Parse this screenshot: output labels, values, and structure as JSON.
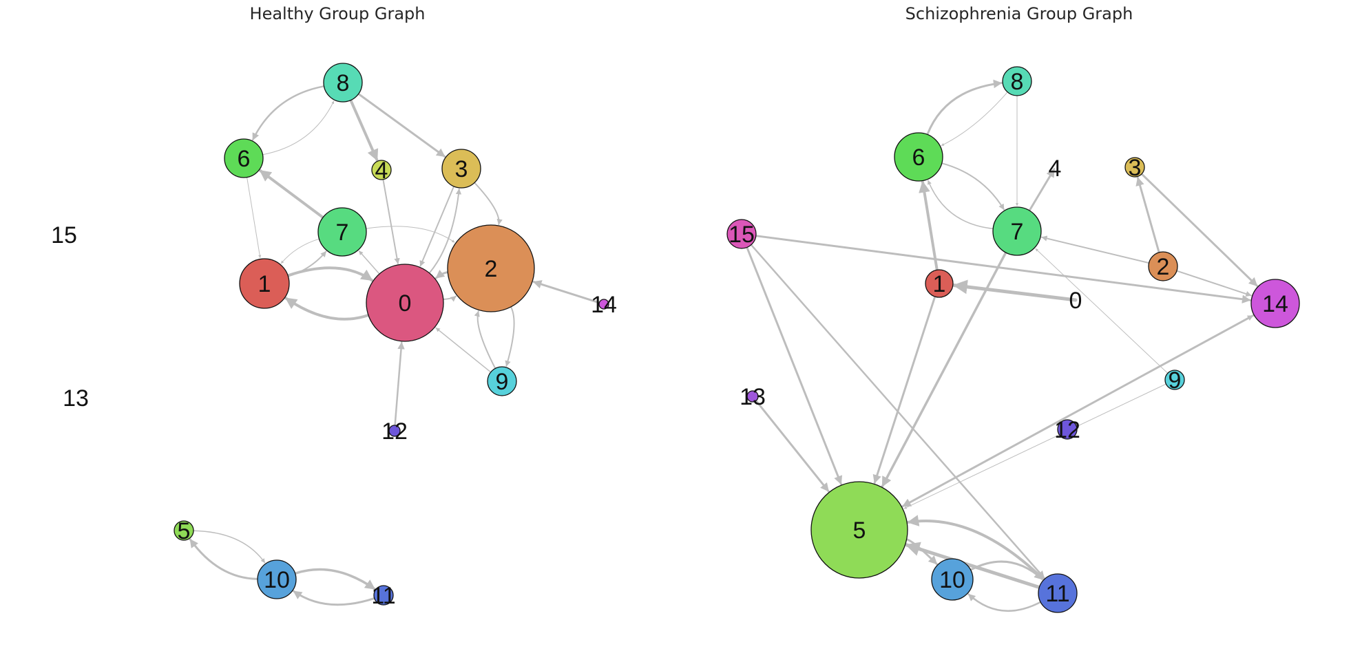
{
  "panels": [
    {
      "title": "Healthy Group Graph",
      "nodes": [
        {
          "id": "0",
          "color": "#db5780",
          "size": 3
        },
        {
          "id": "1",
          "color": "#db5e57",
          "size": 2
        },
        {
          "id": "2",
          "color": "#db8f57",
          "size": 3
        },
        {
          "id": "3",
          "color": "#dbbd57",
          "size": 2
        },
        {
          "id": "4",
          "color": "#c8db57",
          "size": 1
        },
        {
          "id": "5",
          "color": "#8fdb57",
          "size": 1
        },
        {
          "id": "6",
          "color": "#5edb57",
          "size": 2
        },
        {
          "id": "7",
          "color": "#57db80",
          "size": 2
        },
        {
          "id": "8",
          "color": "#57dbb5",
          "size": 2
        },
        {
          "id": "9",
          "color": "#57d1db",
          "size": 2
        },
        {
          "id": "10",
          "color": "#57a2db",
          "size": 2
        },
        {
          "id": "11",
          "color": "#5773db",
          "size": 1
        },
        {
          "id": "12",
          "color": "#6e57db",
          "size": 1
        },
        {
          "id": "13",
          "color": "#9f57db",
          "size": 0
        },
        {
          "id": "14",
          "color": "#cd57db",
          "size": 1
        },
        {
          "id": "15",
          "color": "#db57b8",
          "size": 0
        }
      ],
      "edges": [
        {
          "from": "8",
          "to": "6",
          "w": 2.5,
          "curve": 0.25
        },
        {
          "from": "6",
          "to": "8",
          "w": 1,
          "curve": 0.25
        },
        {
          "from": "8",
          "to": "4",
          "w": 4,
          "curve": 0
        },
        {
          "from": "8",
          "to": "3",
          "w": 3,
          "curve": 0
        },
        {
          "from": "6",
          "to": "1",
          "w": 1,
          "curve": 0
        },
        {
          "from": "7",
          "to": "6",
          "w": 4,
          "curve": 0
        },
        {
          "from": "1",
          "to": "7",
          "w": 2,
          "curve": 0.15
        },
        {
          "from": "7",
          "to": "1",
          "w": 1,
          "curve": 0.15
        },
        {
          "from": "4",
          "to": "0",
          "w": 2,
          "curve": 0
        },
        {
          "from": "3",
          "to": "0",
          "w": 2,
          "curve": 0
        },
        {
          "from": "0",
          "to": "3",
          "w": 2,
          "curve": 0.15
        },
        {
          "from": "3",
          "to": "2",
          "w": 2,
          "curve": -0.25
        },
        {
          "from": "7",
          "to": "2",
          "w": 1,
          "curve": -0.2
        },
        {
          "from": "1",
          "to": "0",
          "w": 4,
          "curve": -0.25
        },
        {
          "from": "0",
          "to": "1",
          "w": 4,
          "curve": -0.25
        },
        {
          "from": "0",
          "to": "7",
          "w": 1.5,
          "curve": 0
        },
        {
          "from": "2",
          "to": "0",
          "w": 3,
          "curve": 0.15
        },
        {
          "from": "0",
          "to": "2",
          "w": 2,
          "curve": 0.15
        },
        {
          "from": "14",
          "to": "2",
          "w": 3,
          "curve": 0
        },
        {
          "from": "2",
          "to": "9",
          "w": 2,
          "curve": -0.2
        },
        {
          "from": "9",
          "to": "2",
          "w": 2,
          "curve": -0.2
        },
        {
          "from": "9",
          "to": "0",
          "w": 1.5,
          "curve": 0
        },
        {
          "from": "12",
          "to": "0",
          "w": 2.5,
          "curve": 0
        },
        {
          "from": "5",
          "to": "10",
          "w": 1.5,
          "curve": -0.25
        },
        {
          "from": "10",
          "to": "5",
          "w": 3,
          "curve": -0.25
        },
        {
          "from": "10",
          "to": "11",
          "w": 3.5,
          "curve": -0.25
        },
        {
          "from": "11",
          "to": "10",
          "w": 3,
          "curve": -0.25
        }
      ]
    },
    {
      "title": "Schizophrenia Group Graph",
      "nodes": [
        {
          "id": "0",
          "color": "#db5780",
          "size": 0
        },
        {
          "id": "1",
          "color": "#db5e57",
          "size": 1
        },
        {
          "id": "2",
          "color": "#db8f57",
          "size": 1
        },
        {
          "id": "3",
          "color": "#dbbd57",
          "size": 1
        },
        {
          "id": "4",
          "color": "#c8db57",
          "size": 0
        },
        {
          "id": "5",
          "color": "#8fdb57",
          "size": 3
        },
        {
          "id": "6",
          "color": "#5edb57",
          "size": 2
        },
        {
          "id": "7",
          "color": "#57db80",
          "size": 2
        },
        {
          "id": "8",
          "color": "#57dbb5",
          "size": 1
        },
        {
          "id": "9",
          "color": "#57d1db",
          "size": 1
        },
        {
          "id": "10",
          "color": "#57a2db",
          "size": 2
        },
        {
          "id": "11",
          "color": "#5773db",
          "size": 2
        },
        {
          "id": "12",
          "color": "#6e57db",
          "size": 1
        },
        {
          "id": "13",
          "color": "#9f57db",
          "size": 1
        },
        {
          "id": "14",
          "color": "#cd57db",
          "size": 2
        },
        {
          "id": "15",
          "color": "#db57b8",
          "size": 1
        }
      ],
      "edges": [
        {
          "from": "6",
          "to": "8",
          "w": 3,
          "curve": -0.3
        },
        {
          "from": "8",
          "to": "6",
          "w": 1,
          "curve": -0.1
        },
        {
          "from": "8",
          "to": "7",
          "w": 1,
          "curve": 0
        },
        {
          "from": "6",
          "to": "7",
          "w": 2,
          "curve": -0.2
        },
        {
          "from": "7",
          "to": "6",
          "w": 1.5,
          "curve": -0.3
        },
        {
          "from": "7",
          "to": "4",
          "w": 3,
          "curve": 0
        },
        {
          "from": "1",
          "to": "6",
          "w": 4,
          "curve": 0
        },
        {
          "from": "0",
          "to": "1",
          "w": 5,
          "curve": 0
        },
        {
          "from": "2",
          "to": "7",
          "w": 2,
          "curve": 0
        },
        {
          "from": "2",
          "to": "3",
          "w": 3,
          "curve": 0
        },
        {
          "from": "3",
          "to": "14",
          "w": 3,
          "curve": 0
        },
        {
          "from": "2",
          "to": "14",
          "w": 2,
          "curve": 0
        },
        {
          "from": "15",
          "to": "14",
          "w": 3,
          "curve": 0
        },
        {
          "from": "9",
          "to": "7",
          "w": 1,
          "curve": 0
        },
        {
          "from": "15",
          "to": "5",
          "w": 3,
          "curve": 0
        },
        {
          "from": "15",
          "to": "11",
          "w": 2.5,
          "curve": 0
        },
        {
          "from": "1",
          "to": "5",
          "w": 3,
          "curve": 0
        },
        {
          "from": "7",
          "to": "5",
          "w": 3.5,
          "curve": 0
        },
        {
          "from": "13",
          "to": "5",
          "w": 3,
          "curve": 0
        },
        {
          "from": "14",
          "to": "5",
          "w": 3,
          "curve": 0
        },
        {
          "from": "5",
          "to": "14",
          "w": 2,
          "curve": 0
        },
        {
          "from": "9",
          "to": "5",
          "w": 1,
          "curve": 0
        },
        {
          "from": "5",
          "to": "10",
          "w": 3,
          "curve": -0.15
        },
        {
          "from": "11",
          "to": "5",
          "w": 5,
          "curve": 0
        },
        {
          "from": "10",
          "to": "11",
          "w": 3,
          "curve": -0.35
        },
        {
          "from": "11",
          "to": "10",
          "w": 2.5,
          "curve": -0.35
        },
        {
          "from": "11",
          "to": "5",
          "w": 4,
          "curve": 0.25
        }
      ]
    }
  ]
}
